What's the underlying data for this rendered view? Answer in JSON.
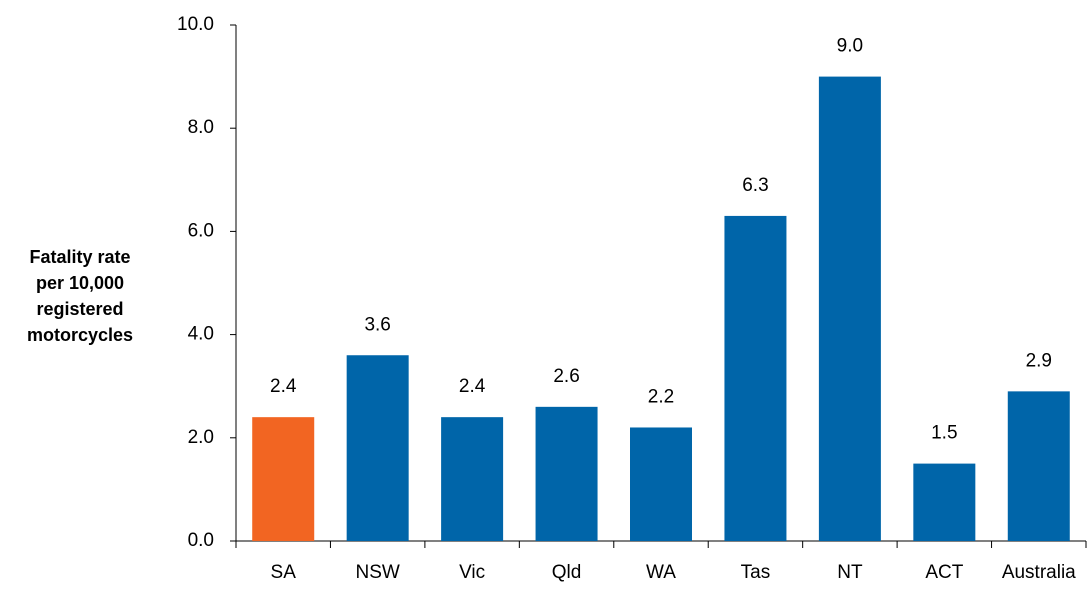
{
  "chart_data": {
    "type": "bar",
    "ylabel": [
      "Fatality rate",
      "per 10,000",
      "registered",
      "motorcycles"
    ],
    "categories": [
      "SA",
      "NSW",
      "Vic",
      "Qld",
      "WA",
      "Tas",
      "NT",
      "ACT",
      "Australia"
    ],
    "values": [
      2.4,
      3.6,
      2.4,
      2.6,
      2.2,
      6.3,
      9,
      1.5,
      2.9
    ],
    "value_labels": [
      "2.4",
      "3.6",
      "2.4",
      "2.6",
      "2.2",
      "6.3",
      "9.0",
      "1.5",
      "2.9"
    ],
    "colors": [
      "#f26522",
      "#0065a9",
      "#0065a9",
      "#0065a9",
      "#0065a9",
      "#0065a9",
      "#0065a9",
      "#0065a9",
      "#0065a9"
    ],
    "ylim": [
      0,
      10
    ],
    "yticks": [
      {
        "value": 0,
        "label": "0.0"
      },
      {
        "value": 2,
        "label": "2.0"
      },
      {
        "value": 4,
        "label": "4.0"
      },
      {
        "value": 6,
        "label": "6.0"
      },
      {
        "value": 8,
        "label": "8.0"
      },
      {
        "value": 10,
        "label": "10.0"
      }
    ],
    "grid": false
  }
}
